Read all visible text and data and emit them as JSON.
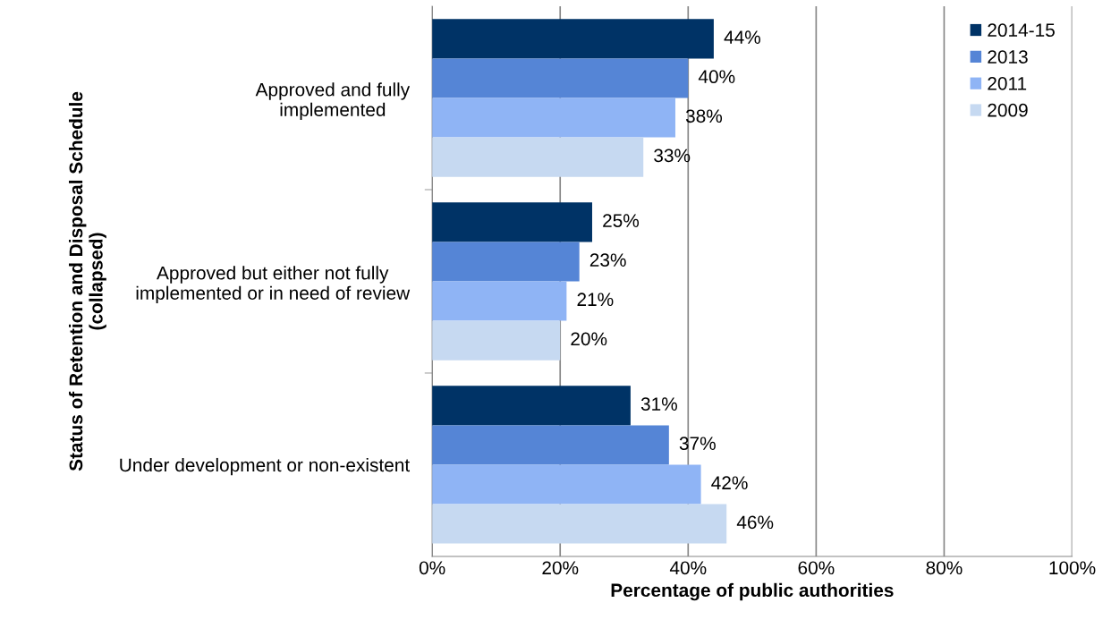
{
  "chart_data": {
    "type": "bar",
    "orientation": "horizontal",
    "xlabel": "Percentage of public authorities",
    "ylabel": "Status of Retention and Disposal Schedule\n(collapsed)",
    "categories": [
      "Approved and fully\nimplemented",
      "Approved but either not fully\nimplemented or in need of review",
      "Under development or non-existent"
    ],
    "series": [
      {
        "name": "2014-15",
        "color": "#003366",
        "values": [
          44,
          25,
          31
        ],
        "value_labels": [
          "44%",
          "25%",
          "31%"
        ]
      },
      {
        "name": "2013",
        "color": "#5585d6",
        "values": [
          40,
          23,
          37
        ],
        "value_labels": [
          "40%",
          "23%",
          "37%"
        ]
      },
      {
        "name": "2011",
        "color": "#8fb4f5",
        "values": [
          38,
          21,
          42
        ],
        "value_labels": [
          "38%",
          "21%",
          "42%"
        ]
      },
      {
        "name": "2009",
        "color": "#c6d9f1",
        "values": [
          33,
          20,
          46
        ],
        "value_labels": [
          "33%",
          "20%",
          "46%"
        ]
      }
    ],
    "xlim": [
      0,
      100
    ],
    "xticks": [
      {
        "value": 0,
        "label": "0%"
      },
      {
        "value": 20,
        "label": "20%"
      },
      {
        "value": 40,
        "label": "40%"
      },
      {
        "value": 60,
        "label": "60%"
      },
      {
        "value": 80,
        "label": "80%"
      },
      {
        "value": 100,
        "label": "100%"
      }
    ],
    "grid": "x",
    "legend": "top right"
  }
}
